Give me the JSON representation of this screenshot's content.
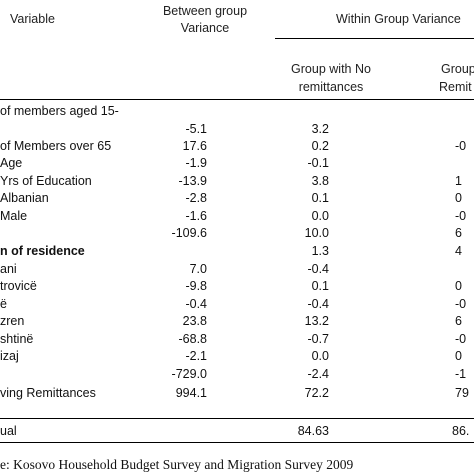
{
  "header": {
    "variable": "Variable",
    "between_line1": "Between group",
    "between_line2": "Variance",
    "within": "Within Group Variance",
    "no_rem_line1": "Group with No",
    "no_rem_line2": "remittances",
    "rem_line1": "Group",
    "rem_line2": "Remit"
  },
  "rows": [
    {
      "label": "of members aged 15-",
      "between": "",
      "no_rem": "",
      "rem": "",
      "bold": false
    },
    {
      "label": "",
      "between": "-5.1",
      "no_rem": "3.2",
      "rem": "",
      "bold": false
    },
    {
      "label": "of Members over 65",
      "between": "17.6",
      "no_rem": "0.2",
      "rem": "-0",
      "bold": false
    },
    {
      "label": "Age",
      "between": "-1.9",
      "no_rem": "-0.1",
      "rem": "",
      "bold": false
    },
    {
      "label": "Yrs of Education",
      "between": "-13.9",
      "no_rem": "3.8",
      "rem": "1",
      "bold": false
    },
    {
      "label": "Albanian",
      "between": "-2.8",
      "no_rem": "0.1",
      "rem": "0",
      "bold": false
    },
    {
      "label": "Male",
      "between": "-1.6",
      "no_rem": "0.0",
      "rem": "-0",
      "bold": false
    },
    {
      "label": "",
      "between": "-109.6",
      "no_rem": "10.0",
      "rem": "6",
      "bold": false
    },
    {
      "label": "n of residence",
      "between": "",
      "no_rem": "1.3",
      "rem": "4",
      "bold": true
    },
    {
      "label": "ani",
      "between": "7.0",
      "no_rem": "-0.4",
      "rem": "",
      "bold": false
    },
    {
      "label": "trovicë",
      "between": "-9.8",
      "no_rem": "0.1",
      "rem": "0",
      "bold": false
    },
    {
      "label": "ë",
      "between": "-0.4",
      "no_rem": "-0.4",
      "rem": "-0",
      "bold": false
    },
    {
      "label": "zren",
      "between": "23.8",
      "no_rem": "13.2",
      "rem": "6",
      "bold": false
    },
    {
      "label": "shtinë",
      "between": "-68.8",
      "no_rem": "-0.7",
      "rem": "-0",
      "bold": false
    },
    {
      "label": "izaj",
      "between": "-2.1",
      "no_rem": "0.0",
      "rem": "0",
      "bold": false
    },
    {
      "label": "",
      "between": "-729.0",
      "no_rem": "-2.4",
      "rem": "-1",
      "bold": false
    },
    {
      "label": "ving Remittances",
      "between": "994.1",
      "no_rem": "72.2",
      "rem": "79",
      "bold": false
    }
  ],
  "total": {
    "label": "ual",
    "between": "",
    "no_rem": "84.63",
    "rem": "86."
  },
  "source": "e: Kosovo Household Budget Survey and Migration Survey 2009"
}
